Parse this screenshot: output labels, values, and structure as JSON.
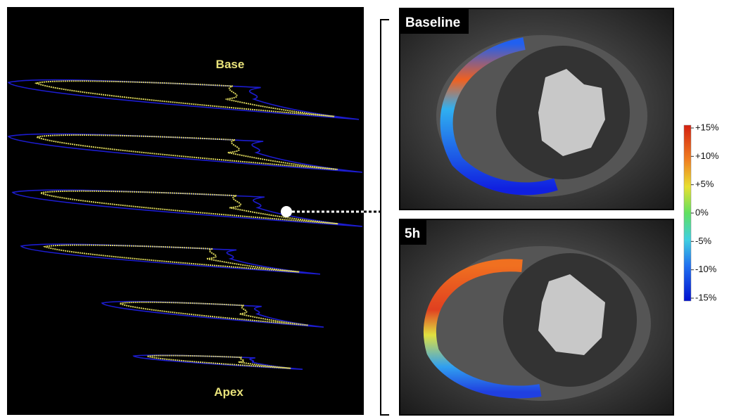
{
  "left_panel": {
    "base_label": "Base",
    "apex_label": "Apex"
  },
  "images": [
    {
      "label": "Baseline"
    },
    {
      "label": "5h"
    }
  ],
  "colorbar": {
    "ticks": [
      "+15%",
      "+10%",
      "+5%",
      "0%",
      "-5%",
      "-10%",
      "-15%"
    ]
  }
}
